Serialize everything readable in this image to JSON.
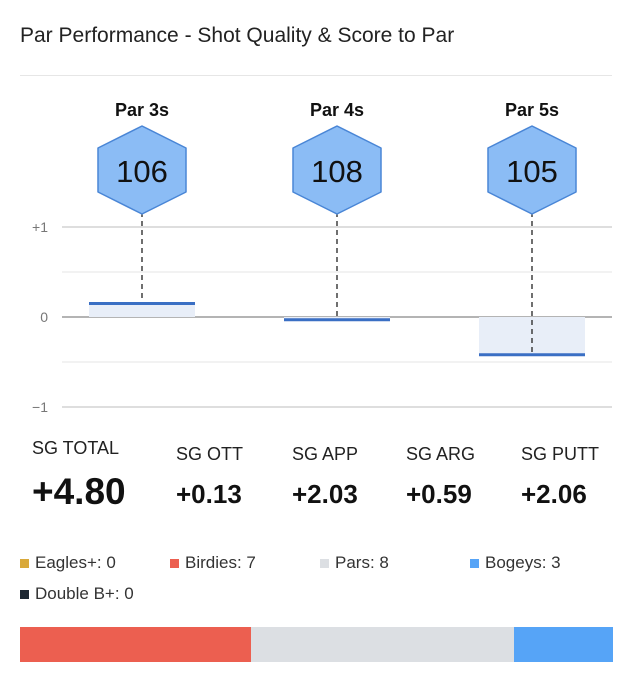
{
  "title": "Par Performance - Shot Quality & Score to Par",
  "colors": {
    "gridline": "#cfcfcf",
    "zero_line": "#888888",
    "hex_fill": "#8bbcf5",
    "hex_stroke": "#4a86d6",
    "bar_line": "#3a6fc4",
    "bar_fill": "#e8eef8"
  },
  "chart_data": {
    "type": "bar",
    "categories": [
      "Par 3s",
      "Par 4s",
      "Par 5s"
    ],
    "shot_quality": [
      "106",
      "108",
      "105"
    ],
    "values": [
      0.15,
      -0.03,
      -0.42
    ],
    "y_ticks": [
      "+1",
      "0",
      "−1"
    ],
    "ylim": [
      -1,
      1
    ],
    "grid": true
  },
  "strokes_gained": [
    {
      "label": "SG TOTAL",
      "value": "+4.80"
    },
    {
      "label": "SG OTT",
      "value": "+0.13"
    },
    {
      "label": "SG APP",
      "value": "+2.03"
    },
    {
      "label": "SG ARG",
      "value": "+0.59"
    },
    {
      "label": "SG PUTT",
      "value": "+2.06"
    }
  ],
  "legend": [
    {
      "label": "Eagles+: 0",
      "color": "#d9a93a",
      "count": 0
    },
    {
      "label": "Birdies: 7",
      "color": "#ec5f50",
      "count": 7
    },
    {
      "label": "Pars: 8",
      "color": "#dcdfe3",
      "count": 8
    },
    {
      "label": "Bogeys: 3",
      "color": "#56a4f7",
      "count": 3
    },
    {
      "label": "Double B+: 0",
      "color": "#1c2631",
      "count": 0
    }
  ]
}
